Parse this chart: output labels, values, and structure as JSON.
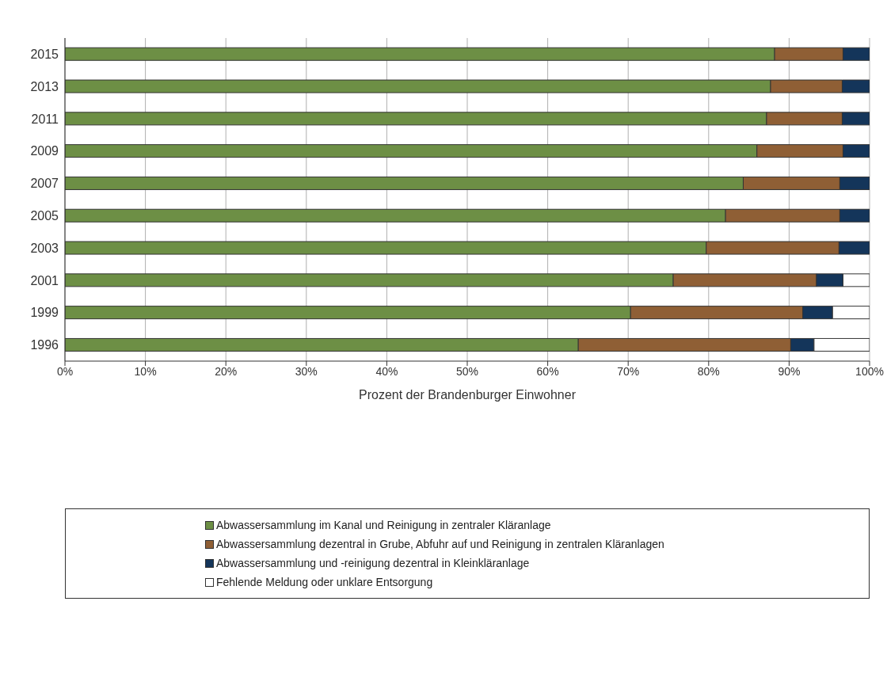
{
  "chart_data": {
    "type": "bar",
    "orientation": "horizontal",
    "stacked": true,
    "xlabel": "Prozent der Brandenburger Einwohner",
    "categories": [
      "2015",
      "2013",
      "2011",
      "2009",
      "2007",
      "2005",
      "2003",
      "2001",
      "1999",
      "1996"
    ],
    "series": [
      {
        "name": "Abwassersammlung im Kanal und Reinigung in zentraler Kläranlage",
        "color": "#6d8f45",
        "values": [
          88.2,
          87.7,
          87.2,
          86.0,
          84.3,
          82.1,
          79.7,
          75.6,
          70.3,
          63.8
        ]
      },
      {
        "name": "Abwassersammlung dezentral in Grube, Abfuhr auf und Reinigung in zentralen Kläranlagen",
        "color": "#8f5f35",
        "values": [
          8.5,
          8.9,
          9.4,
          10.7,
          12.0,
          14.2,
          16.5,
          17.8,
          21.4,
          26.4
        ]
      },
      {
        "name": "Abwassersammlung und -reinigung dezentral in Kleinkläranlage",
        "color": "#14355a",
        "values": [
          3.3,
          3.4,
          3.4,
          3.3,
          3.7,
          3.7,
          3.8,
          3.3,
          3.7,
          2.9
        ]
      },
      {
        "name": "Fehlende Meldung oder unklare Entsorgung",
        "color": "#ffffff",
        "values": [
          null,
          null,
          null,
          null,
          null,
          null,
          null,
          3.3,
          4.6,
          6.9
        ]
      }
    ],
    "xlim": [
      0,
      100
    ],
    "xticks": [
      {
        "value": 0,
        "label": "0%"
      },
      {
        "value": 10,
        "label": "10%"
      },
      {
        "value": 20,
        "label": "20%"
      },
      {
        "value": 30,
        "label": "30%"
      },
      {
        "value": 40,
        "label": "40%"
      },
      {
        "value": 50,
        "label": "50%"
      },
      {
        "value": 60,
        "label": "60%"
      },
      {
        "value": 70,
        "label": "70%"
      },
      {
        "value": 80,
        "label": "80%"
      },
      {
        "value": 90,
        "label": "90%"
      },
      {
        "value": 100,
        "label": "100%"
      }
    ],
    "grid": "x",
    "legend": "bottom"
  }
}
